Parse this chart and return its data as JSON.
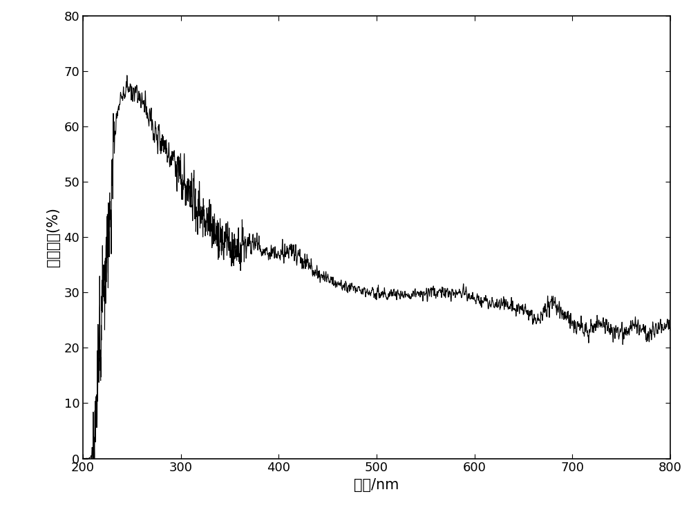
{
  "xlabel": "波长/nm",
  "ylabel": "光吸收率(%)",
  "xlim": [
    200,
    800
  ],
  "ylim": [
    0,
    80
  ],
  "xticks": [
    200,
    300,
    400,
    500,
    600,
    700,
    800
  ],
  "yticks": [
    0,
    10,
    20,
    30,
    40,
    50,
    60,
    70,
    80
  ],
  "line_color": "#000000",
  "line_width": 0.8,
  "background_color": "#ffffff",
  "xlabel_fontsize": 15,
  "ylabel_fontsize": 15,
  "tick_fontsize": 13
}
